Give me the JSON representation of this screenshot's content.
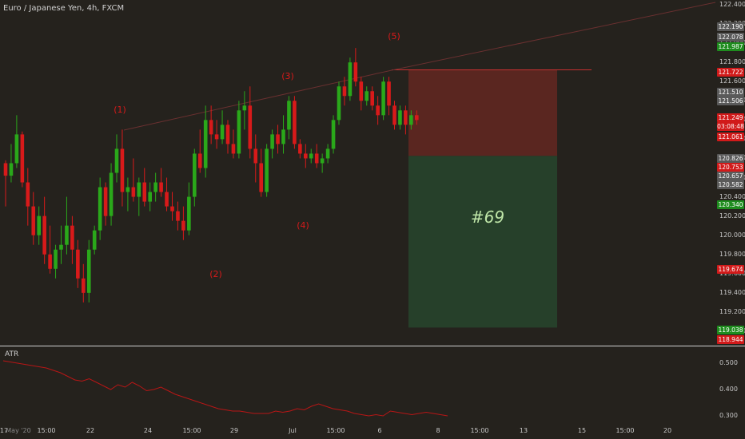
{
  "symbol_title": "Euro / Japanese Yen, 4h, FXCM",
  "atr_title": "ATR",
  "trade_label": "#69",
  "wave_labels": [
    "(1)",
    "(2)",
    "(3)",
    "(4)",
    "(5)"
  ],
  "price_ticks": [
    "122.400",
    "122.200",
    "122.000",
    "121.800",
    "121.600",
    "121.400",
    "121.200",
    "121.000",
    "120.800",
    "120.600",
    "120.400",
    "120.200",
    "120.000",
    "119.800",
    "119.600",
    "119.400",
    "119.200",
    "119.000"
  ],
  "price_tags": [
    {
      "text": "122.190",
      "color": "#5a5a5a"
    },
    {
      "text": "122.078",
      "color": "#5a5a5a"
    },
    {
      "text": "121.987",
      "color": "#1e8c1e"
    },
    {
      "text": "121.722",
      "color": "#d11a1a"
    },
    {
      "text": "121.510",
      "color": "#5a5a5a"
    },
    {
      "text": "121.506",
      "color": "#5a5a5a"
    },
    {
      "text": "121.249",
      "color": "#d11a1a"
    },
    {
      "text": "03:08:48",
      "color": "#d11a1a"
    },
    {
      "text": "121.061",
      "color": "#d11a1a"
    },
    {
      "text": "120.826",
      "color": "#5a5a5a"
    },
    {
      "text": "120.753",
      "color": "#d11a1a"
    },
    {
      "text": "120.657",
      "color": "#5a5a5a"
    },
    {
      "text": "120.582",
      "color": "#5a5a5a"
    },
    {
      "text": "120.340",
      "color": "#1e8c1e"
    },
    {
      "text": "119.674",
      "color": "#d11a1a"
    },
    {
      "text": "119.038",
      "color": "#1e8c1e"
    },
    {
      "text": "118.944",
      "color": "#d11a1a"
    }
  ],
  "atr_ticks": [
    "0.500",
    "0.400",
    "0.300"
  ],
  "time_ticks": [
    "17",
    "15:00",
    "22",
    "24",
    "15:00",
    "29",
    "Jul",
    "15:00",
    "6",
    "8",
    "15:00",
    "13",
    "15",
    "15:00",
    "20"
  ],
  "time_cursor_label": "May '20",
  "colors": {
    "background": "#25221d",
    "bull": "#2aa81a",
    "bear": "#d81a1a",
    "stop_zone": "#5a2620",
    "target_zone": "#26402a",
    "atr_line": "#b81616"
  },
  "chart_data": {
    "type": "candlestick",
    "title": "Euro / Japanese Yen, 4h, FXCM",
    "ylim": [
      118.85,
      122.45
    ],
    "trade": {
      "stop": 121.722,
      "entry": 120.826,
      "target": 119.038
    },
    "candles": [
      [
        120.75,
        120.78,
        120.3,
        120.62
      ],
      [
        120.62,
        120.95,
        120.55,
        120.75
      ],
      [
        120.75,
        121.25,
        120.7,
        121.05
      ],
      [
        121.05,
        121.08,
        120.5,
        120.55
      ],
      [
        120.55,
        120.7,
        120.1,
        120.3
      ],
      [
        120.3,
        120.45,
        119.9,
        120.0
      ],
      [
        120.0,
        120.3,
        119.9,
        120.2
      ],
      [
        120.2,
        120.4,
        119.7,
        119.8
      ],
      [
        119.8,
        120.1,
        119.6,
        119.65
      ],
      [
        119.65,
        119.9,
        119.55,
        119.85
      ],
      [
        119.85,
        120.1,
        119.7,
        119.9
      ],
      [
        119.9,
        120.4,
        119.8,
        120.1
      ],
      [
        120.1,
        120.2,
        119.7,
        119.85
      ],
      [
        119.85,
        119.95,
        119.45,
        119.55
      ],
      [
        119.55,
        119.7,
        119.3,
        119.4
      ],
      [
        119.4,
        119.95,
        119.3,
        119.85
      ],
      [
        119.85,
        120.1,
        119.8,
        120.05
      ],
      [
        120.05,
        120.6,
        119.95,
        120.5
      ],
      [
        120.5,
        120.55,
        120.1,
        120.2
      ],
      [
        120.2,
        120.75,
        120.1,
        120.65
      ],
      [
        120.65,
        121.05,
        120.55,
        120.9
      ],
      [
        120.9,
        121.1,
        120.3,
        120.45
      ],
      [
        120.45,
        120.6,
        120.25,
        120.5
      ],
      [
        120.5,
        120.8,
        120.35,
        120.4
      ],
      [
        120.4,
        120.6,
        120.2,
        120.55
      ],
      [
        120.55,
        120.7,
        120.3,
        120.35
      ],
      [
        120.35,
        120.55,
        120.25,
        120.45
      ],
      [
        120.45,
        120.65,
        120.35,
        120.55
      ],
      [
        120.55,
        120.7,
        120.4,
        120.45
      ],
      [
        120.45,
        120.6,
        120.25,
        120.3
      ],
      [
        120.3,
        120.45,
        120.15,
        120.25
      ],
      [
        120.25,
        120.35,
        120.05,
        120.15
      ],
      [
        120.15,
        120.3,
        119.95,
        120.05
      ],
      [
        120.05,
        120.55,
        120.0,
        120.4
      ],
      [
        120.4,
        120.9,
        120.3,
        120.85
      ],
      [
        120.85,
        121.1,
        120.65,
        120.7
      ],
      [
        120.7,
        121.35,
        120.6,
        121.2
      ],
      [
        121.2,
        121.35,
        120.95,
        121.05
      ],
      [
        121.05,
        121.2,
        120.9,
        121.0
      ],
      [
        121.0,
        121.3,
        120.95,
        121.15
      ],
      [
        121.15,
        121.2,
        120.85,
        120.95
      ],
      [
        120.95,
        121.1,
        120.8,
        120.85
      ],
      [
        120.85,
        121.4,
        120.8,
        121.3
      ],
      [
        121.3,
        121.5,
        121.1,
        121.35
      ],
      [
        121.35,
        121.55,
        120.8,
        120.9
      ],
      [
        120.9,
        121.05,
        120.55,
        120.75
      ],
      [
        120.75,
        120.9,
        120.4,
        120.45
      ],
      [
        120.45,
        120.95,
        120.4,
        120.9
      ],
      [
        120.9,
        121.1,
        120.8,
        121.05
      ],
      [
        121.05,
        121.15,
        120.85,
        120.95
      ],
      [
        120.95,
        121.25,
        120.85,
        121.1
      ],
      [
        121.1,
        121.45,
        121.0,
        121.4
      ],
      [
        121.4,
        121.45,
        120.9,
        120.95
      ],
      [
        120.95,
        121.0,
        120.8,
        120.85
      ],
      [
        120.85,
        120.95,
        120.7,
        120.8
      ],
      [
        120.8,
        120.9,
        120.75,
        120.85
      ],
      [
        120.85,
        120.95,
        120.7,
        120.75
      ],
      [
        120.75,
        120.85,
        120.65,
        120.8
      ],
      [
        120.8,
        120.95,
        120.75,
        120.9
      ],
      [
        120.9,
        121.25,
        120.85,
        121.2
      ],
      [
        121.2,
        121.6,
        121.15,
        121.55
      ],
      [
        121.55,
        121.65,
        121.35,
        121.45
      ],
      [
        121.45,
        121.85,
        121.4,
        121.8
      ],
      [
        121.8,
        121.95,
        121.55,
        121.6
      ],
      [
        121.6,
        121.65,
        121.3,
        121.4
      ],
      [
        121.4,
        121.55,
        121.35,
        121.5
      ],
      [
        121.5,
        121.55,
        121.3,
        121.35
      ],
      [
        121.35,
        121.45,
        121.15,
        121.25
      ],
      [
        121.25,
        121.65,
        121.2,
        121.6
      ],
      [
        121.6,
        121.65,
        121.25,
        121.35
      ],
      [
        121.35,
        121.4,
        121.1,
        121.15
      ],
      [
        121.15,
        121.35,
        121.1,
        121.3
      ],
      [
        121.3,
        121.35,
        121.05,
        121.15
      ],
      [
        121.15,
        121.3,
        121.1,
        121.25
      ],
      [
        121.25,
        121.3,
        121.15,
        121.2
      ]
    ],
    "atr": {
      "ylim": [
        0.26,
        0.56
      ],
      "values": [
        0.52,
        0.515,
        0.51,
        0.505,
        0.5,
        0.495,
        0.49,
        0.48,
        0.47,
        0.455,
        0.44,
        0.435,
        0.445,
        0.43,
        0.415,
        0.4,
        0.42,
        0.41,
        0.43,
        0.415,
        0.395,
        0.4,
        0.41,
        0.395,
        0.38,
        0.37,
        0.36,
        0.35,
        0.34,
        0.33,
        0.32,
        0.315,
        0.31,
        0.31,
        0.305,
        0.3,
        0.3,
        0.3,
        0.31,
        0.305,
        0.31,
        0.32,
        0.315,
        0.33,
        0.34,
        0.33,
        0.32,
        0.315,
        0.31,
        0.3,
        0.295,
        0.29,
        0.295,
        0.29,
        0.31,
        0.305,
        0.3,
        0.295,
        0.3,
        0.305,
        0.3,
        0.295,
        0.29
      ]
    }
  }
}
